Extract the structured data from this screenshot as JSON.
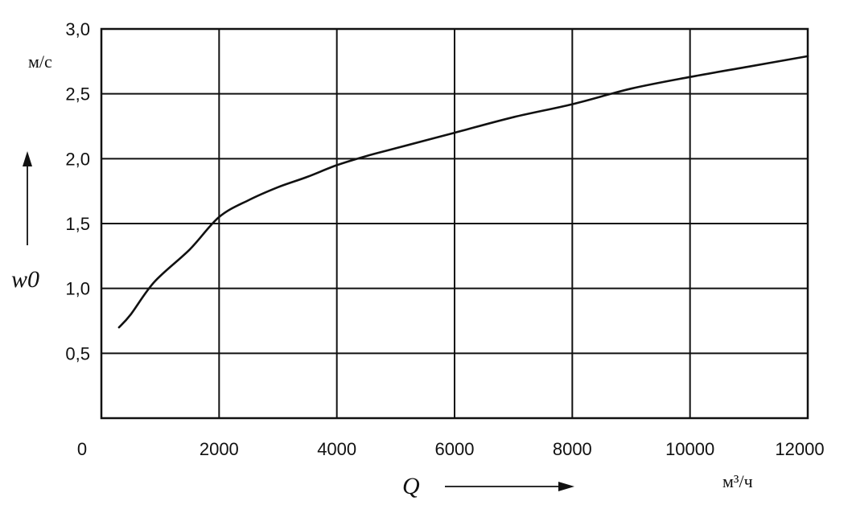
{
  "chart_data": {
    "type": "line",
    "title": "",
    "xlabel": "Q",
    "xunit": "м³/ч",
    "ylabel": "w0",
    "yunit": "м/с",
    "xlim": [
      0,
      12000
    ],
    "ylim": [
      0,
      3.0
    ],
    "x_ticks": [
      {
        "value": 0,
        "label": "0"
      },
      {
        "value": 2000,
        "label": "2000"
      },
      {
        "value": 4000,
        "label": "4000"
      },
      {
        "value": 6000,
        "label": "6000"
      },
      {
        "value": 8000,
        "label": "8000"
      },
      {
        "value": 10000,
        "label": "10000"
      },
      {
        "value": 12000,
        "label": "12000"
      }
    ],
    "y_ticks": [
      {
        "value": 0.5,
        "label": "0,5"
      },
      {
        "value": 1.0,
        "label": "1,0"
      },
      {
        "value": 1.5,
        "label": "1,5"
      },
      {
        "value": 2.0,
        "label": "2,0"
      },
      {
        "value": 2.5,
        "label": "2,5"
      },
      {
        "value": 3.0,
        "label": "3,0"
      }
    ],
    "grid": true,
    "series": [
      {
        "points": [
          [
            300,
            0.7
          ],
          [
            500,
            0.8
          ],
          [
            900,
            1.05
          ],
          [
            1500,
            1.3
          ],
          [
            2000,
            1.55
          ],
          [
            2500,
            1.68
          ],
          [
            3000,
            1.78
          ],
          [
            3500,
            1.86
          ],
          [
            4000,
            1.95
          ],
          [
            4500,
            2.02
          ],
          [
            5000,
            2.08
          ],
          [
            6000,
            2.2
          ],
          [
            7000,
            2.32
          ],
          [
            8000,
            2.42
          ],
          [
            9000,
            2.54
          ],
          [
            10000,
            2.63
          ],
          [
            11000,
            2.71
          ],
          [
            12000,
            2.79
          ]
        ]
      }
    ]
  }
}
